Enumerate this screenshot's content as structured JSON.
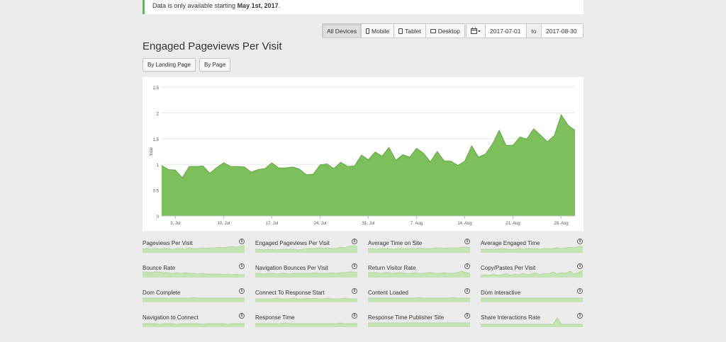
{
  "notice": {
    "text": "Data is only available starting ",
    "bold": "May 1st, 2017",
    "end": "."
  },
  "devices": {
    "all": "All Devices",
    "mobile": "Mobile",
    "tablet": "Tablet",
    "desktop": "Desktop",
    "active": "all"
  },
  "daterange": {
    "from": "2017-07-01",
    "to_label": "to",
    "to": "2017-08-30",
    "calendar_icon": "calendar-icon"
  },
  "page_title": "Engaged Pageviews Per Visit",
  "subtabs": {
    "by_landing": "By Landing Page",
    "by_page": "By Page"
  },
  "colors": {
    "accent": "#5cb85c",
    "area_fill": "#7cbf5b",
    "area_stroke": "#64a644",
    "spark_fill": "#c5e3b4"
  },
  "chart_data": {
    "type": "area",
    "ylabel": "total",
    "ylim": [
      0,
      2.5
    ],
    "yticks": [
      "0",
      "0.5",
      "1",
      "1.5",
      "2",
      "2.5"
    ],
    "xtick_labels": [
      "3. Jul",
      "10. Jul",
      "17. Jul",
      "24. Jul",
      "31. Jul",
      "7. Aug",
      "14. Aug",
      "21. Aug",
      "28. Aug"
    ],
    "xtick_day_index": [
      2,
      9,
      16,
      23,
      30,
      37,
      44,
      51,
      58
    ],
    "grid": true,
    "legend": "none",
    "series": [
      {
        "values": [
          0.98,
          0.9,
          0.89,
          0.74,
          0.96,
          0.96,
          0.97,
          0.83,
          0.94,
          1.03,
          0.96,
          0.96,
          0.95,
          0.85,
          0.9,
          0.92,
          1.03,
          0.93,
          0.93,
          0.95,
          0.91,
          0.8,
          0.81,
          0.99,
          1.01,
          0.92,
          1.04,
          0.96,
          0.97,
          1.18,
          1.09,
          1.24,
          1.16,
          1.33,
          1.08,
          1.19,
          1.14,
          1.31,
          1.22,
          1.05,
          1.25,
          1.07,
          1.06,
          0.98,
          1.06,
          1.36,
          1.14,
          1.2,
          1.39,
          1.66,
          1.37,
          1.37,
          1.53,
          1.49,
          1.69,
          1.57,
          1.44,
          1.56,
          1.96,
          1.76,
          1.66
        ]
      }
    ]
  },
  "metrics": [
    {
      "label": "Pageviews Per Visit",
      "spark": [
        5,
        6,
        5,
        6,
        5,
        6,
        6,
        5,
        6,
        6,
        5,
        7,
        6,
        6,
        7,
        6,
        7,
        7,
        8,
        7,
        8,
        9,
        8,
        9,
        10
      ]
    },
    {
      "label": "Engaged Pageviews Per Visit",
      "spark": [
        5,
        5,
        4,
        5,
        5,
        4,
        5,
        5,
        5,
        5,
        4,
        5,
        6,
        6,
        6,
        7,
        6,
        7,
        6,
        6,
        8,
        7,
        9,
        10,
        9
      ]
    },
    {
      "label": "Average Time on Site",
      "spark": [
        6,
        6,
        5,
        6,
        6,
        6,
        5,
        6,
        6,
        6,
        6,
        6,
        7,
        6,
        6,
        6,
        7,
        7,
        6,
        7,
        7,
        7,
        8,
        8,
        7
      ]
    },
    {
      "label": "Average Engaged Time",
      "spark": [
        5,
        5,
        5,
        5,
        5,
        6,
        5,
        5,
        5,
        6,
        5,
        6,
        6,
        6,
        5,
        6,
        6,
        6,
        7,
        6,
        7,
        8,
        7,
        9,
        9
      ]
    },
    {
      "label": "Bounce Rate",
      "spark": [
        8,
        8,
        7,
        8,
        8,
        7,
        7,
        6,
        7,
        6,
        7,
        6,
        6,
        5,
        6,
        5,
        5,
        5,
        5,
        4,
        5,
        4,
        5,
        4,
        4
      ]
    },
    {
      "label": "Navigation Bounces Per Visit",
      "spark": [
        6,
        6,
        5,
        6,
        6,
        5,
        6,
        6,
        5,
        6,
        6,
        6,
        6,
        6,
        7,
        6,
        6,
        6,
        7,
        6,
        7,
        7,
        8,
        8,
        7
      ]
    },
    {
      "label": "Return Visitor Rate",
      "spark": [
        7,
        7,
        7,
        6,
        7,
        7,
        6,
        7,
        7,
        6,
        6,
        7,
        6,
        6,
        7,
        7,
        6,
        6,
        7,
        6,
        6,
        7,
        9,
        7,
        6
      ]
    },
    {
      "label": "Copy/Pastes Per Visit",
      "spark": [
        3,
        4,
        3,
        5,
        3,
        4,
        6,
        3,
        5,
        4,
        6,
        4,
        5,
        7,
        4,
        6,
        5,
        8,
        5,
        7,
        6,
        9,
        5,
        7,
        10
      ]
    },
    {
      "label": "Dom Complete",
      "spark": [
        6,
        6,
        6,
        6,
        6,
        6,
        6,
        6,
        6,
        6,
        6,
        6,
        7,
        6,
        6,
        6,
        6,
        6,
        6,
        6,
        6,
        6,
        6,
        6,
        6
      ]
    },
    {
      "label": "Connect To Response Start",
      "spark": [
        5,
        5,
        5,
        5,
        5,
        6,
        5,
        5,
        5,
        6,
        5,
        5,
        6,
        5,
        6,
        5,
        5,
        6,
        5,
        5,
        5,
        6,
        5,
        5,
        5
      ]
    },
    {
      "label": "Content Loaded",
      "spark": [
        6,
        6,
        6,
        6,
        6,
        6,
        6,
        6,
        6,
        6,
        6,
        6,
        7,
        6,
        6,
        6,
        6,
        6,
        6,
        6,
        7,
        6,
        6,
        6,
        6
      ]
    },
    {
      "label": "Dom Interactive",
      "spark": [
        6,
        6,
        6,
        6,
        6,
        6,
        6,
        6,
        6,
        6,
        6,
        6,
        6,
        6,
        6,
        6,
        6,
        6,
        6,
        6,
        6,
        6,
        6,
        6,
        6
      ]
    },
    {
      "label": "Navigation to Connect",
      "spark": [
        5,
        5,
        5,
        5,
        4,
        5,
        5,
        5,
        4,
        5,
        5,
        5,
        5,
        5,
        4,
        5,
        5,
        5,
        5,
        5,
        4,
        5,
        5,
        5,
        5
      ]
    },
    {
      "label": "Response Time",
      "spark": [
        5,
        5,
        5,
        5,
        5,
        5,
        5,
        6,
        5,
        5,
        5,
        5,
        5,
        5,
        5,
        5,
        5,
        5,
        5,
        5,
        6,
        5,
        5,
        5,
        5
      ]
    },
    {
      "label": "Response Time Publisher Site",
      "spark": [
        6,
        6,
        6,
        6,
        6,
        6,
        6,
        6,
        6,
        6,
        6,
        6,
        6,
        6,
        6,
        6,
        6,
        6,
        6,
        6,
        6,
        6,
        6,
        6,
        6
      ]
    },
    {
      "label": "Share Interactions Rate",
      "spark": [
        4,
        4,
        4,
        4,
        4,
        4,
        4,
        4,
        4,
        4,
        4,
        4,
        4,
        4,
        4,
        4,
        4,
        4,
        13,
        4,
        4,
        4,
        4,
        4,
        4
      ]
    }
  ]
}
